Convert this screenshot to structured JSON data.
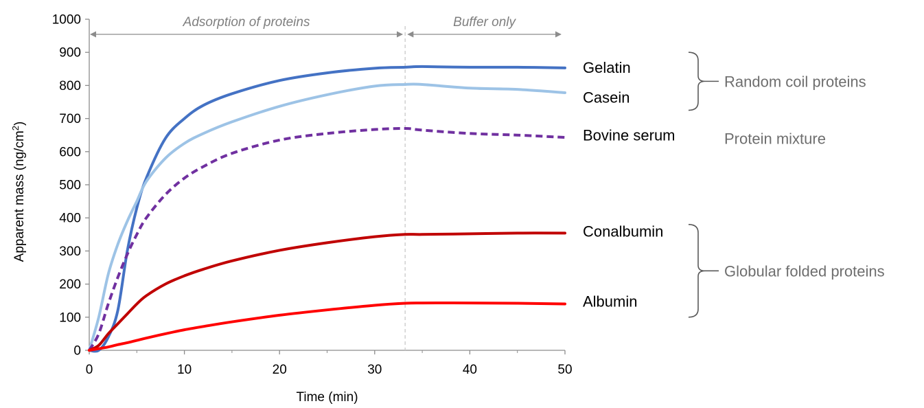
{
  "chart_data": {
    "type": "line",
    "xlabel": "Time (min)",
    "ylabel": "Apparent mass (ng/cm",
    "ylabel_sup": "2",
    "ylabel_tail": ")",
    "xlim": [
      0,
      50
    ],
    "ylim": [
      0,
      1000
    ],
    "xticks": [
      "0",
      "10",
      "20",
      "30",
      "40",
      "50"
    ],
    "yticks": [
      "0",
      "100",
      "200",
      "300",
      "400",
      "500",
      "600",
      "700",
      "800",
      "900",
      "1000"
    ],
    "grid": false,
    "divider_x": 33.2,
    "phases": [
      {
        "label": "Adsorption of proteins",
        "x_start": 0,
        "x_end": 33.2
      },
      {
        "label": "Buffer only",
        "x_start": 33.2,
        "x_end": 50
      }
    ],
    "series": [
      {
        "name": "Gelatin",
        "color": "#4472c4",
        "dashed": false,
        "x": [
          0,
          1,
          2,
          3,
          4,
          5,
          6,
          8,
          10,
          12,
          15,
          20,
          25,
          30,
          33.2,
          35,
          40,
          45,
          50
        ],
        "y": [
          0,
          0,
          40,
          120,
          300,
          430,
          520,
          640,
          700,
          740,
          775,
          815,
          838,
          852,
          855,
          857,
          855,
          855,
          853
        ]
      },
      {
        "name": "Casein",
        "color": "#9dc3e6",
        "dashed": false,
        "x": [
          0,
          1,
          2,
          3,
          4,
          5,
          6,
          8,
          10,
          12,
          15,
          20,
          25,
          30,
          33.2,
          35,
          40,
          45,
          50
        ],
        "y": [
          0,
          100,
          230,
          320,
          390,
          450,
          510,
          580,
          625,
          655,
          690,
          737,
          772,
          798,
          803,
          803,
          792,
          788,
          778
        ]
      },
      {
        "name": "Bovine serum",
        "color": "#7030a0",
        "dashed": true,
        "x": [
          0,
          1,
          2,
          3,
          4,
          5,
          6,
          8,
          10,
          12,
          15,
          20,
          25,
          30,
          33.2,
          35,
          40,
          45,
          50
        ],
        "y": [
          0,
          50,
          140,
          220,
          290,
          350,
          400,
          470,
          520,
          555,
          595,
          635,
          655,
          667,
          670,
          665,
          655,
          650,
          643
        ]
      },
      {
        "name": "Conalbumin",
        "color": "#c00000",
        "dashed": false,
        "x": [
          0,
          1,
          2,
          3,
          4,
          5,
          6,
          8,
          10,
          12,
          15,
          20,
          25,
          30,
          33.2,
          35,
          40,
          45,
          50
        ],
        "y": [
          0,
          15,
          50,
          80,
          110,
          140,
          165,
          200,
          225,
          245,
          270,
          302,
          325,
          343,
          350,
          350,
          352,
          354,
          354
        ]
      },
      {
        "name": "Albumin",
        "color": "#ff0000",
        "dashed": false,
        "x": [
          0,
          1,
          2,
          3,
          4,
          5,
          6,
          8,
          10,
          12,
          15,
          20,
          25,
          30,
          33.2,
          35,
          40,
          45,
          50
        ],
        "y": [
          0,
          5,
          10,
          17,
          23,
          30,
          37,
          50,
          62,
          72,
          86,
          106,
          122,
          136,
          142,
          143,
          143,
          142,
          140
        ]
      }
    ],
    "series_labels": [
      {
        "text": "Gelatin",
        "value": 855
      },
      {
        "text": "Casein",
        "value": 765
      },
      {
        "text": "Bovine serum",
        "value": 650
      },
      {
        "text": "Conalbumin",
        "value": 360
      },
      {
        "text": "Albumin",
        "value": 148
      }
    ],
    "groups": [
      {
        "label": "Random coil proteins",
        "y_top": 900,
        "y_bottom": 725,
        "bracket": true
      },
      {
        "label": "Protein mixture",
        "y_center": 640,
        "bracket": false
      },
      {
        "label": "Globular folded proteins",
        "y_top": 380,
        "y_bottom": 100,
        "bracket": true
      }
    ]
  }
}
